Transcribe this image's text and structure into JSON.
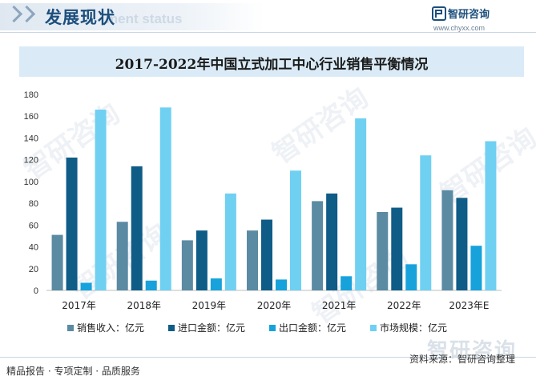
{
  "header": {
    "section_title": "发展现状",
    "section_subtitle": "ment status",
    "brand_name": "智研咨询",
    "brand_url": "www.chyxx.com"
  },
  "watermark": {
    "text": "智研咨询"
  },
  "chart_data": {
    "type": "bar",
    "title": "2017-2022年中国立式加工中心行业销售平衡情况",
    "categories": [
      "2017年",
      "2018年",
      "2019年",
      "2020年",
      "2021年",
      "2022年",
      "2023年E"
    ],
    "ylim": [
      0,
      180
    ],
    "yticks": [
      0,
      20,
      40,
      60,
      80,
      100,
      120,
      140,
      160,
      180
    ],
    "grid": false,
    "legend_position": "bottom",
    "series": [
      {
        "name": "销售收入：亿元",
        "color": "#5b8aa3",
        "values": [
          51,
          63,
          46,
          55,
          82,
          72,
          92
        ]
      },
      {
        "name": "进口金额：亿元",
        "color": "#0f5c87",
        "values": [
          122,
          114,
          55,
          65,
          89,
          76,
          85
        ]
      },
      {
        "name": "出口金额：亿元",
        "color": "#17a2db",
        "values": [
          7,
          9,
          11,
          10,
          13,
          24,
          41
        ]
      },
      {
        "name": "市场规模：亿元",
        "color": "#6fd0f2",
        "values": [
          166,
          168,
          89,
          110,
          158,
          124,
          137
        ]
      }
    ]
  },
  "footer": {
    "source": "资料来源：智研咨询整理",
    "slogan": "精品报告 · 专项定制 · 品质服务"
  }
}
